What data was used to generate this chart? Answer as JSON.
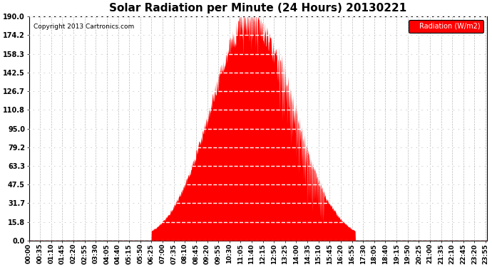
{
  "title": "Solar Radiation per Minute (24 Hours) 20130221",
  "copyright": "Copyright 2013 Cartronics.com",
  "legend_label": "Radiation (W/m2)",
  "background_color": "#ffffff",
  "plot_bg_color": "#ffffff",
  "fill_color": "#ff0000",
  "line_color": "#ff0000",
  "grid_color_h": "#aaaaaa",
  "grid_color_v": "#aaaaaa",
  "ytick_labels": [
    "0.0",
    "15.8",
    "31.7",
    "47.5",
    "63.3",
    "79.2",
    "95.0",
    "110.8",
    "126.7",
    "142.5",
    "158.3",
    "174.2",
    "190.0"
  ],
  "ytick_values": [
    0.0,
    15.8,
    31.7,
    47.5,
    63.3,
    79.2,
    95.0,
    110.8,
    126.7,
    142.5,
    158.3,
    174.2,
    190.0
  ],
  "ymax": 190.0,
  "ymin": 0.0,
  "xtick_labels": [
    "00:00",
    "00:35",
    "01:10",
    "01:45",
    "02:20",
    "02:55",
    "03:30",
    "04:05",
    "04:40",
    "05:15",
    "05:50",
    "06:25",
    "07:00",
    "07:35",
    "08:10",
    "08:45",
    "09:20",
    "09:55",
    "10:30",
    "11:05",
    "11:40",
    "12:15",
    "12:50",
    "13:25",
    "14:00",
    "14:35",
    "15:10",
    "15:45",
    "16:20",
    "16:55",
    "17:30",
    "18:05",
    "18:40",
    "19:15",
    "19:50",
    "20:25",
    "21:00",
    "21:35",
    "22:10",
    "22:45",
    "23:20",
    "23:55"
  ],
  "num_minutes": 1440,
  "sunrise_minute": 385,
  "sunset_minute": 1025,
  "peak_minute": 695,
  "peak_value": 190.0,
  "title_fontsize": 11,
  "tick_fontsize": 7,
  "figwidth": 6.9,
  "figheight": 3.75,
  "dpi": 100
}
